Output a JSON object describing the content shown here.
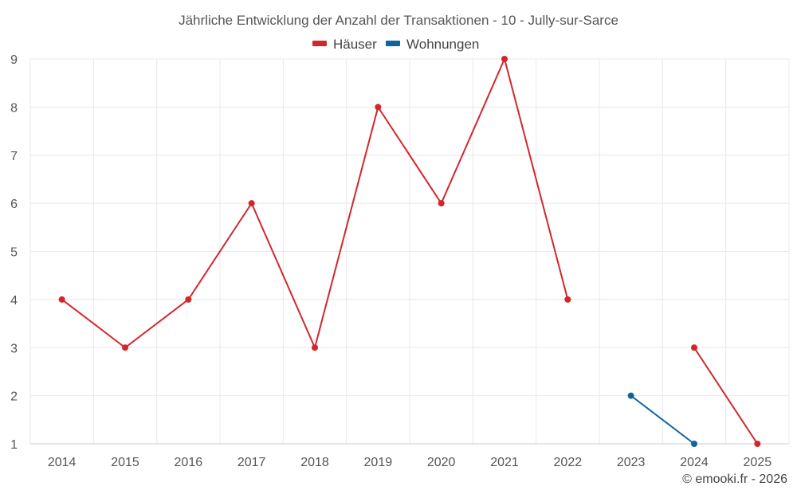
{
  "chart_data": {
    "type": "line",
    "title": "Jährliche Entwicklung der Anzahl der Transaktionen - 10 - Jully-sur-Sarce",
    "categories": [
      "2014",
      "2015",
      "2016",
      "2017",
      "2018",
      "2019",
      "2020",
      "2021",
      "2022",
      "2023",
      "2024",
      "2025"
    ],
    "yticks": [
      "1",
      "2",
      "3",
      "4",
      "5",
      "6",
      "7",
      "8",
      "9"
    ],
    "ylim": [
      1,
      9
    ],
    "grid": true,
    "legend_position": "top-center",
    "series": [
      {
        "name": "Häuser",
        "color": "#d3262b",
        "values": [
          4,
          3,
          4,
          6,
          3,
          8,
          6,
          9,
          4,
          null,
          3,
          1
        ]
      },
      {
        "name": "Wohnungen",
        "color": "#0f64a0",
        "values": [
          null,
          null,
          null,
          null,
          null,
          null,
          null,
          null,
          null,
          2,
          1,
          null
        ]
      }
    ]
  },
  "credit": "© emooki.fr - 2026"
}
